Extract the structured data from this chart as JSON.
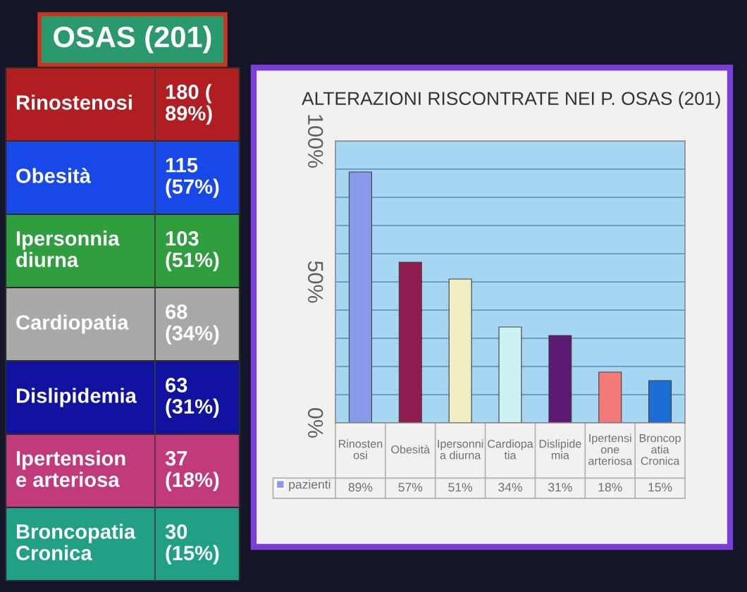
{
  "chart_data": [
    {
      "type": "other",
      "title": "OSAS (201)",
      "annotations": [
        "Rinostenosi",
        "180 (\n89%)",
        "Obesità",
        "115\n(57%)",
        "Ipersonnia\ndiurna",
        "103\n(51%)",
        "Cardiopatia",
        "68\n(34%)",
        "Dislipidemia",
        "63\n(31%)",
        "Ipertension\ne arteriosa",
        "37\n(18%)",
        "Broncopatia\nCronica",
        "30\n(15%)"
      ],
      "colors": [
        "#b01e22",
        "#1848e8",
        "#2e9e3e",
        "#a8a8a8",
        "#1212a0",
        "#c03a7c",
        "#22a086"
      ]
    },
    {
      "type": "bar",
      "title": "ALTERAZIONI RISCONTRATE NEI P. OSAS (201)",
      "categories": [
        "Rinosten\nosi",
        "Obesità",
        "Ipersonni\na diurna",
        "Cardiopa\ntia",
        "Dislipide\nmia",
        "Ipertensi\none\narteriosa",
        "Broncop\natia\nCronica"
      ],
      "series": [
        {
          "name": "pazienti",
          "color": "#8a9aea",
          "colors": [
            "#8a9aea",
            "#8e1c4e",
            "#f2eec4",
            "#ccf2f2",
            "#5c1a72",
            "#f47a7a",
            "#1c6ed2"
          ],
          "values": [
            89,
            57,
            51,
            34,
            31,
            18,
            15
          ],
          "value_labels": [
            "89%",
            "57%",
            "51%",
            "34%",
            "31%",
            "18%",
            "15%"
          ]
        }
      ],
      "ylim": [
        0,
        100
      ],
      "yticks": [
        {
          "value": 0,
          "label": "0%"
        },
        {
          "value": 10,
          "label": null
        },
        {
          "value": 20,
          "label": null
        },
        {
          "value": 30,
          "label": null
        },
        {
          "value": 40,
          "label": null
        },
        {
          "value": 50,
          "label": "50%"
        },
        {
          "value": 60,
          "label": null
        },
        {
          "value": 70,
          "label": null
        },
        {
          "value": 80,
          "label": null
        },
        {
          "value": 90,
          "label": null
        },
        {
          "value": 100,
          "label": "100%"
        }
      ],
      "grid": "y",
      "legend": "bottom left"
    }
  ]
}
